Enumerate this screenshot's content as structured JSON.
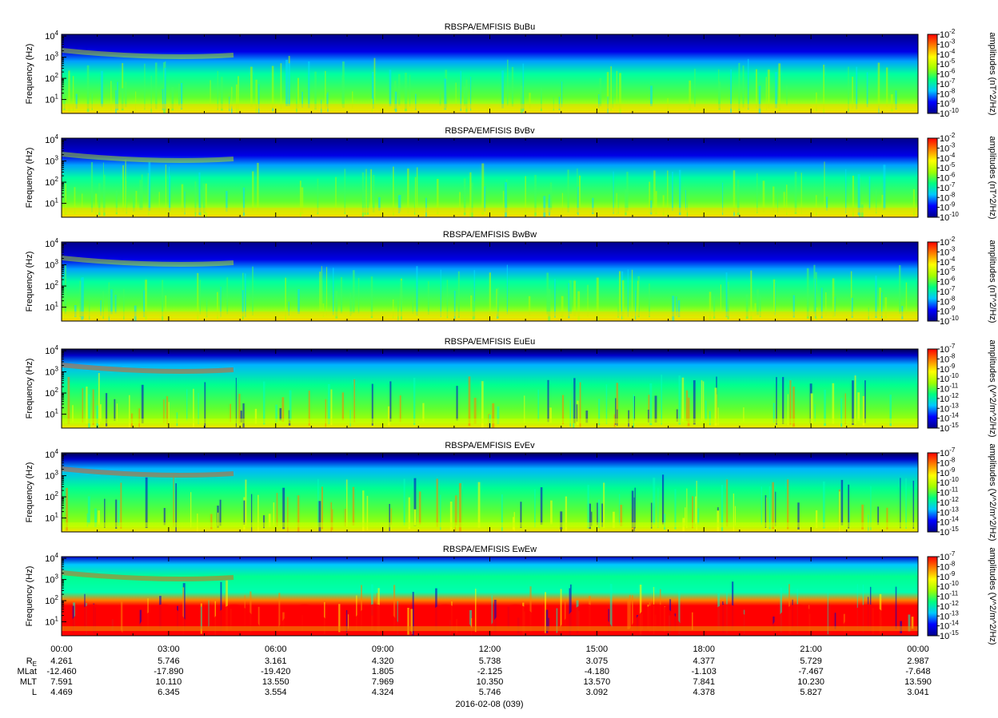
{
  "chart_data": {
    "type": "heatmap",
    "x_ticks": [
      "00:00",
      "03:00",
      "06:00",
      "09:00",
      "12:00",
      "15:00",
      "18:00",
      "21:00",
      "00:00"
    ],
    "x_label": "2016-02-08 (039)",
    "y_label": "Frequency (Hz)",
    "y_scale": "log",
    "y_ticks": [
      {
        "base": "10",
        "exp": "1"
      },
      {
        "base": "10",
        "exp": "2"
      },
      {
        "base": "10",
        "exp": "3"
      },
      {
        "base": "10",
        "exp": "4"
      }
    ],
    "colormap": [
      "#00008b",
      "#0000ff",
      "#00c8ff",
      "#00ff80",
      "#a0ff00",
      "#ffff00",
      "#ff8000",
      "#ff0000"
    ],
    "panels": [
      {
        "title": "RBSPA/EMFISIS  BuBu",
        "colorbar_label": "amplitudes (nT^2/Hz)",
        "cb_exps": [
          "-2",
          "-3",
          "-4",
          "-5",
          "-6",
          "-7",
          "-8",
          "-9",
          "-10"
        ],
        "kind": "B"
      },
      {
        "title": "RBSPA/EMFISIS  BvBv",
        "colorbar_label": "amplitudes (nT^2/Hz)",
        "cb_exps": [
          "-2",
          "-3",
          "-4",
          "-5",
          "-6",
          "-7",
          "-8",
          "-9",
          "-10"
        ],
        "kind": "B"
      },
      {
        "title": "RBSPA/EMFISIS  BwBw",
        "colorbar_label": "amplitudes (nT^2/Hz)",
        "cb_exps": [
          "-2",
          "-3",
          "-4",
          "-5",
          "-6",
          "-7",
          "-8",
          "-9",
          "-10"
        ],
        "kind": "B"
      },
      {
        "title": "RBSPA/EMFISIS  EuEu",
        "colorbar_label": "amplitudes (V^2/m^2/Hz)",
        "cb_exps": [
          "-7",
          "-8",
          "-9",
          "-10",
          "-11",
          "-12",
          "-13",
          "-14",
          "-15"
        ],
        "kind": "E"
      },
      {
        "title": "RBSPA/EMFISIS  EvEv",
        "colorbar_label": "amplitudes (V^2/m^2/Hz)",
        "cb_exps": [
          "-7",
          "-8",
          "-9",
          "-10",
          "-11",
          "-12",
          "-13",
          "-14",
          "-15"
        ],
        "kind": "E"
      },
      {
        "title": "RBSPA/EMFISIS  EwEw",
        "colorbar_label": "amplitudes (V^2/m^2/Hz)",
        "cb_exps": [
          "-7",
          "-8",
          "-9",
          "-10",
          "-11",
          "-12",
          "-13",
          "-14",
          "-15"
        ],
        "kind": "Ew"
      }
    ],
    "ephemeris": [
      {
        "label": "R",
        "sub": "E",
        "values": [
          "4.261",
          "5.746",
          "3.161",
          "4.320",
          "5.738",
          "3.075",
          "4.377",
          "5.729",
          "2.987"
        ]
      },
      {
        "label": "MLat",
        "sub": "",
        "values": [
          "-12.460",
          "-17.890",
          "-19.420",
          "1.805",
          "-2.125",
          "-4.180",
          "-1.103",
          "-7.467",
          "-7.648"
        ]
      },
      {
        "label": "MLT",
        "sub": "",
        "values": [
          "7.591",
          "10.110",
          "13.550",
          "7.969",
          "10.350",
          "13.570",
          "7.841",
          "10.230",
          "13.590"
        ]
      },
      {
        "label": "L",
        "sub": "",
        "values": [
          "4.469",
          "6.345",
          "3.554",
          "4.324",
          "5.746",
          "3.092",
          "4.378",
          "5.827",
          "3.041"
        ]
      }
    ]
  }
}
